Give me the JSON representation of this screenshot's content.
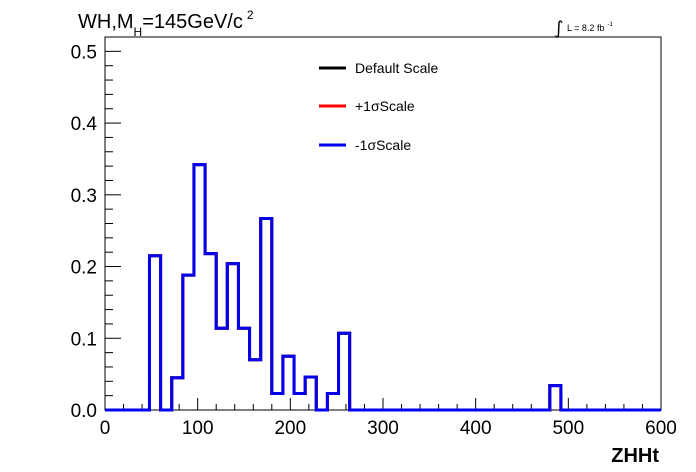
{
  "colors": {
    "default": "#000000",
    "plus1sigma": "#ff0000",
    "minus1sigma": "#0000ee",
    "axis": "#000000",
    "background": "#ffffff"
  },
  "header": {
    "title_main": "WH,M",
    "title_sub": "H",
    "title_tail": "=145GeV/c",
    "title_sup": "2",
    "lumi_label": "L = 8.2 fb",
    "lumi_sup": "-1",
    "lumi_integral": "∫"
  },
  "chart_data": {
    "type": "line",
    "style": "step-histogram",
    "xlabel": "ZHHt",
    "ylabel": "",
    "xlim": [
      0,
      600
    ],
    "ylim": [
      0,
      0.52
    ],
    "grid": false,
    "legend_position": "top-center",
    "x_ticks": [
      0,
      100,
      200,
      300,
      400,
      500,
      600
    ],
    "x_tick_labels": [
      "0",
      "100",
      "200",
      "300",
      "400",
      "500",
      "600"
    ],
    "y_ticks": [
      0,
      0.1,
      0.2,
      0.3,
      0.4,
      0.5
    ],
    "y_tick_labels": [
      "0.0",
      "0.1",
      "0.2",
      "0.3",
      "0.4",
      "0.5"
    ],
    "bin_edges": [
      0,
      12,
      24,
      36,
      48,
      60,
      72,
      84,
      96,
      108,
      120,
      132,
      144,
      156,
      168,
      180,
      192,
      204,
      216,
      228,
      240,
      252,
      264,
      276,
      288,
      300,
      312,
      324,
      336,
      348,
      360,
      372,
      384,
      396,
      408,
      420,
      432,
      444,
      456,
      468,
      480,
      492,
      504,
      516,
      528,
      540,
      552,
      564,
      576,
      588,
      600
    ],
    "series": [
      {
        "name": "Default Scale",
        "color_key": "default",
        "values": [
          0,
          0,
          0,
          0,
          0.215,
          0,
          0.045,
          0.188,
          0.342,
          0.218,
          0.114,
          0.204,
          0.114,
          0.07,
          0.267,
          0.023,
          0.075,
          0.023,
          0.046,
          0,
          0.023,
          0.107,
          0,
          0,
          0,
          0,
          0,
          0,
          0,
          0,
          0,
          0,
          0,
          0,
          0,
          0,
          0,
          0,
          0,
          0,
          0.034,
          0,
          0,
          0,
          0,
          0,
          0,
          0,
          0,
          0
        ]
      },
      {
        "name": "+1σScale",
        "color_key": "plus1sigma",
        "values": [
          0,
          0,
          0,
          0,
          0.215,
          0,
          0.045,
          0.188,
          0.342,
          0.218,
          0.114,
          0.204,
          0.114,
          0.07,
          0.267,
          0.023,
          0.075,
          0.023,
          0.046,
          0,
          0.023,
          0.107,
          0,
          0,
          0,
          0,
          0,
          0,
          0,
          0,
          0,
          0,
          0,
          0,
          0,
          0,
          0,
          0,
          0,
          0,
          0.034,
          0,
          0,
          0,
          0,
          0,
          0,
          0,
          0,
          0
        ]
      },
      {
        "name": "-1σScale",
        "color_key": "minus1sigma",
        "values": [
          0,
          0,
          0,
          0,
          0.215,
          0,
          0.045,
          0.188,
          0.342,
          0.218,
          0.114,
          0.204,
          0.114,
          0.07,
          0.267,
          0.023,
          0.075,
          0.023,
          0.046,
          0,
          0.023,
          0.107,
          0,
          0,
          0,
          0,
          0,
          0,
          0,
          0,
          0,
          0,
          0,
          0,
          0,
          0,
          0,
          0,
          0,
          0,
          0.034,
          0,
          0,
          0,
          0,
          0,
          0,
          0,
          0,
          0
        ]
      }
    ]
  }
}
